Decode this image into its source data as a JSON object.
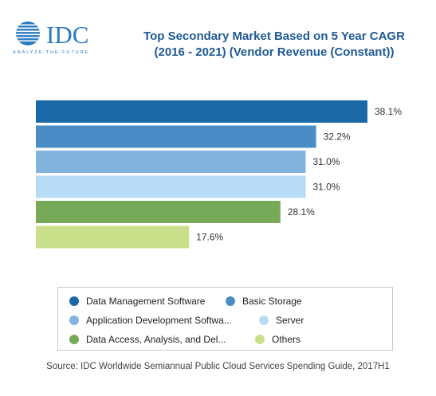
{
  "logo": {
    "wordmark": "IDC",
    "tagline": "ANALYZE THE FUTURE"
  },
  "title": {
    "line1": "Top Secondary Market Based on 5 Year CAGR",
    "line2": "(2016 - 2021) (Vendor Revenue (Constant))"
  },
  "chart_data": {
    "type": "bar",
    "orientation": "horizontal",
    "categories": [
      "Data Management Software",
      "Basic Storage",
      "Application Development Softwa...",
      "Server",
      "Data Access, Analysis, and Del...",
      "Others"
    ],
    "values": [
      38.1,
      32.2,
      31.0,
      31.0,
      28.1,
      17.6
    ],
    "value_labels": [
      "38.1%",
      "32.2%",
      "31.0%",
      "31.0%",
      "28.1%",
      "17.6%"
    ],
    "colors": [
      "#1a69a6",
      "#4a8cc4",
      "#82b4df",
      "#b9dcf6",
      "#77aa58",
      "#c9df8a"
    ],
    "xlim": [
      0,
      38.1
    ],
    "grid": false,
    "legend_position": "bottom"
  },
  "source": "Source: IDC Worldwide Semiannual Public Cloud Services Spending Guide, 2017H1"
}
